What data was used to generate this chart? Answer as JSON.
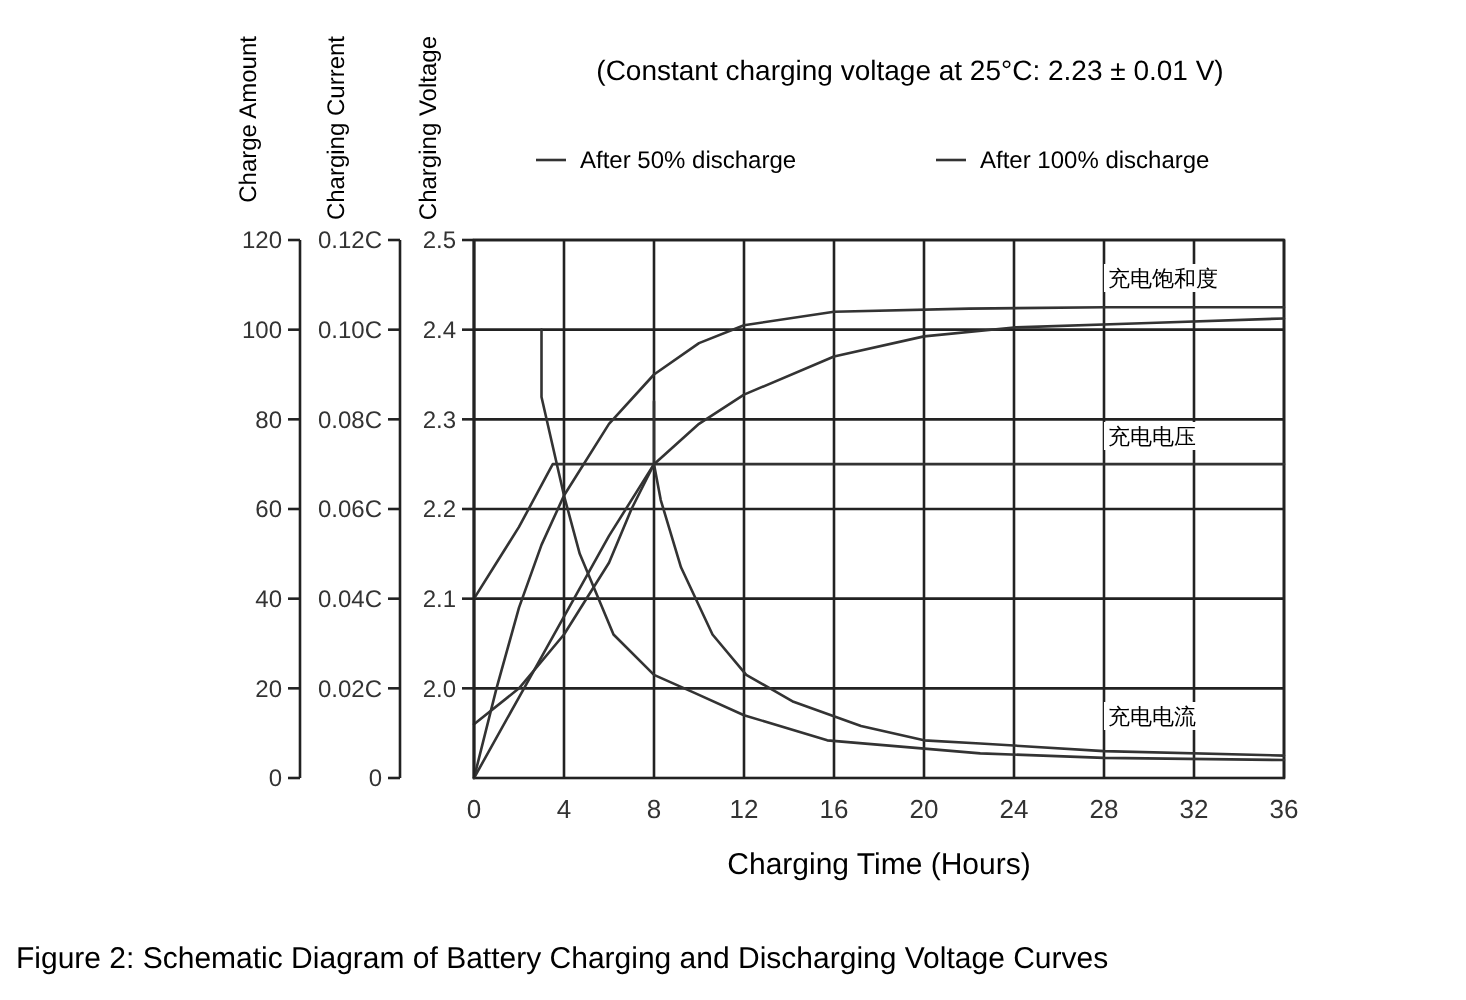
{
  "chart_data": {
    "type": "line",
    "title": "(Constant charging voltage at 25°C: 2.23 ± 0.01 V)",
    "xlabel": "Charging Time (Hours)",
    "ylabel": "Charging Voltage",
    "y2label": "Charging Current",
    "y3label": "Charge Amount",
    "xlim": [
      0,
      36
    ],
    "xticks": [
      0,
      4,
      8,
      12,
      16,
      20,
      24,
      28,
      32,
      36
    ],
    "ylim": [
      1.9,
      2.5
    ],
    "yticks": [
      {
        "value": 2.0,
        "label": "2.0"
      },
      2.1,
      2.2,
      2.3,
      2.4,
      2.5
    ],
    "y2lim": [
      0,
      0.12
    ],
    "y2ticks": [
      0,
      {
        "value": 0.02,
        "label": "0.02C"
      },
      {
        "value": 0.04,
        "label": "0.04C"
      },
      {
        "value": 0.06,
        "label": "0.06C"
      },
      {
        "value": 0.08,
        "label": "0.08C"
      },
      {
        "value": 0.1,
        "label": "0.10C"
      },
      {
        "value": 0.12,
        "label": "0.12C"
      }
    ],
    "y3lim": [
      0,
      120
    ],
    "y3ticks": [
      0,
      20,
      40,
      60,
      80,
      100,
      120
    ],
    "grid": true,
    "legend": "top",
    "series": [
      {
        "name": "After 50% discharge",
        "color": "#333333",
        "axis": "y3",
        "x": [
          0,
          1,
          2,
          3,
          4,
          6,
          8,
          10,
          12,
          16,
          22,
          28,
          36
        ],
        "values": [
          0,
          20,
          38,
          52,
          63,
          79,
          90,
          97,
          101,
          104,
          104.7,
          105,
          105
        ]
      },
      {
        "name": "After 100% discharge",
        "color": "#333333",
        "axis": "y3",
        "x": [
          0,
          2,
          4,
          6,
          8,
          10,
          12,
          16,
          20,
          24,
          30,
          36
        ],
        "values": [
          0,
          18,
          36,
          54,
          70,
          79,
          85.5,
          94,
          98.5,
          100.5,
          101.5,
          102.5
        ]
      },
      {
        "color": "#333333",
        "axis": "y2",
        "x": [
          3,
          3,
          4,
          4.7,
          6.2,
          8,
          9.8,
          12,
          15.7,
          22.5,
          28,
          36
        ],
        "values": [
          0.1,
          0.085,
          0.063,
          0.05,
          0.032,
          0.023,
          0.019,
          0.014,
          0.0084,
          0.0055,
          0.0045,
          0.004
        ]
      },
      {
        "color": "#333333",
        "axis": "y2",
        "x": [
          8,
          8,
          8.3,
          9.2,
          10.6,
          12.1,
          14.2,
          17.2,
          20,
          22.5,
          28,
          36
        ],
        "values": [
          0.084,
          0.07,
          0.062,
          0.047,
          0.032,
          0.023,
          0.017,
          0.0116,
          0.0084,
          0.0077,
          0.006,
          0.005
        ]
      },
      {
        "color": "#333333",
        "axis": "y",
        "x": [
          0,
          1,
          2,
          3.5,
          36
        ],
        "values": [
          2.1,
          2.14,
          2.18,
          2.25,
          2.25
        ]
      },
      {
        "color": "#333333",
        "axis": "y",
        "x": [
          0,
          2,
          4,
          6,
          7,
          8
        ],
        "values": [
          1.96,
          2.0,
          2.06,
          2.14,
          2.2,
          2.25
        ]
      }
    ],
    "annotations": [
      "充电饱和度",
      "充电电压",
      "充电电流",
      "Figure 2: Schematic Diagram of Battery Charging and Discharging Voltage Curves"
    ]
  }
}
